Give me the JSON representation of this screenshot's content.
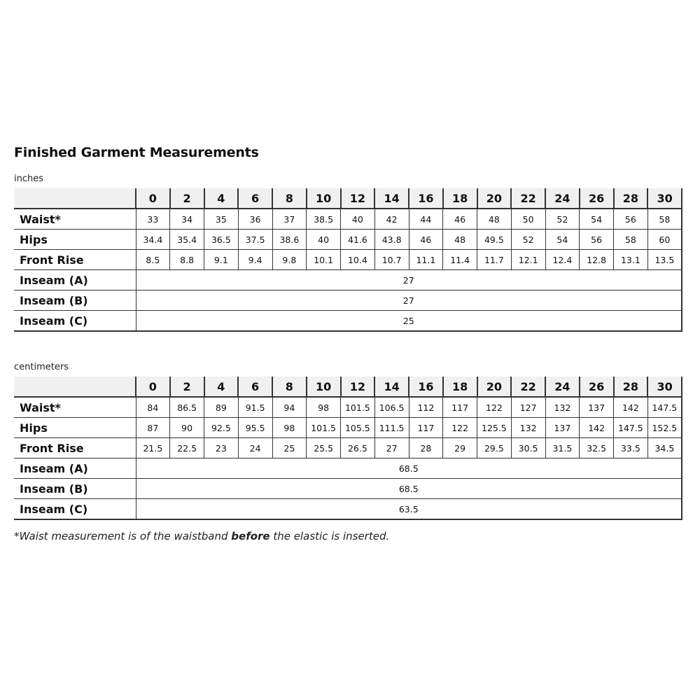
{
  "title": "Finished Garment Measurements",
  "sizes": [
    "0",
    "2",
    "4",
    "6",
    "8",
    "10",
    "12",
    "14",
    "16",
    "18",
    "20",
    "22",
    "24",
    "26",
    "28",
    "30"
  ],
  "inches": {
    "unit_label": "inches",
    "rows": [
      {
        "label": "Waist*",
        "values": [
          "33",
          "34",
          "35",
          "36",
          "37",
          "38.5",
          "40",
          "42",
          "44",
          "46",
          "48",
          "50",
          "52",
          "54",
          "56",
          "58"
        ]
      },
      {
        "label": "Hips",
        "values": [
          "34.4",
          "35.4",
          "36.5",
          "37.5",
          "38.6",
          "40",
          "41.6",
          "43.8",
          "46",
          "48",
          "49.5",
          "52",
          "54",
          "56",
          "58",
          "60"
        ]
      },
      {
        "label": "Front Rise",
        "values": [
          "8.5",
          "8.8",
          "9.1",
          "9.4",
          "9.8",
          "10.1",
          "10.4",
          "10.7",
          "11.1",
          "11.4",
          "11.7",
          "12.1",
          "12.4",
          "12.8",
          "13.1",
          "13.5"
        ]
      },
      {
        "label": "Inseam (A)",
        "span_value": "27"
      },
      {
        "label": "Inseam (B)",
        "span_value": "27"
      },
      {
        "label": "Inseam (C)",
        "span_value": "25"
      }
    ]
  },
  "centimeters": {
    "unit_label": "centimeters",
    "rows": [
      {
        "label": "Waist*",
        "values": [
          "84",
          "86.5",
          "89",
          "91.5",
          "94",
          "98",
          "101.5",
          "106.5",
          "112",
          "117",
          "122",
          "127",
          "132",
          "137",
          "142",
          "147.5"
        ]
      },
      {
        "label": "Hips",
        "values": [
          "87",
          "90",
          "92.5",
          "95.5",
          "98",
          "101.5",
          "105.5",
          "111.5",
          "117",
          "122",
          "125.5",
          "132",
          "137",
          "142",
          "147.5",
          "152.5"
        ]
      },
      {
        "label": "Front Rise",
        "values": [
          "21.5",
          "22.5",
          "23",
          "24",
          "25",
          "25.5",
          "26.5",
          "27",
          "28",
          "29",
          "29.5",
          "30.5",
          "31.5",
          "32.5",
          "33.5",
          "34.5"
        ]
      },
      {
        "label": "Inseam (A)",
        "span_value": "68.5"
      },
      {
        "label": "Inseam (B)",
        "span_value": "68.5"
      },
      {
        "label": "Inseam (C)",
        "span_value": "63.5"
      }
    ]
  },
  "footnote": {
    "before": "*Waist measurement is of the waistband ",
    "bold": "before",
    "after": " the elastic is inserted."
  }
}
